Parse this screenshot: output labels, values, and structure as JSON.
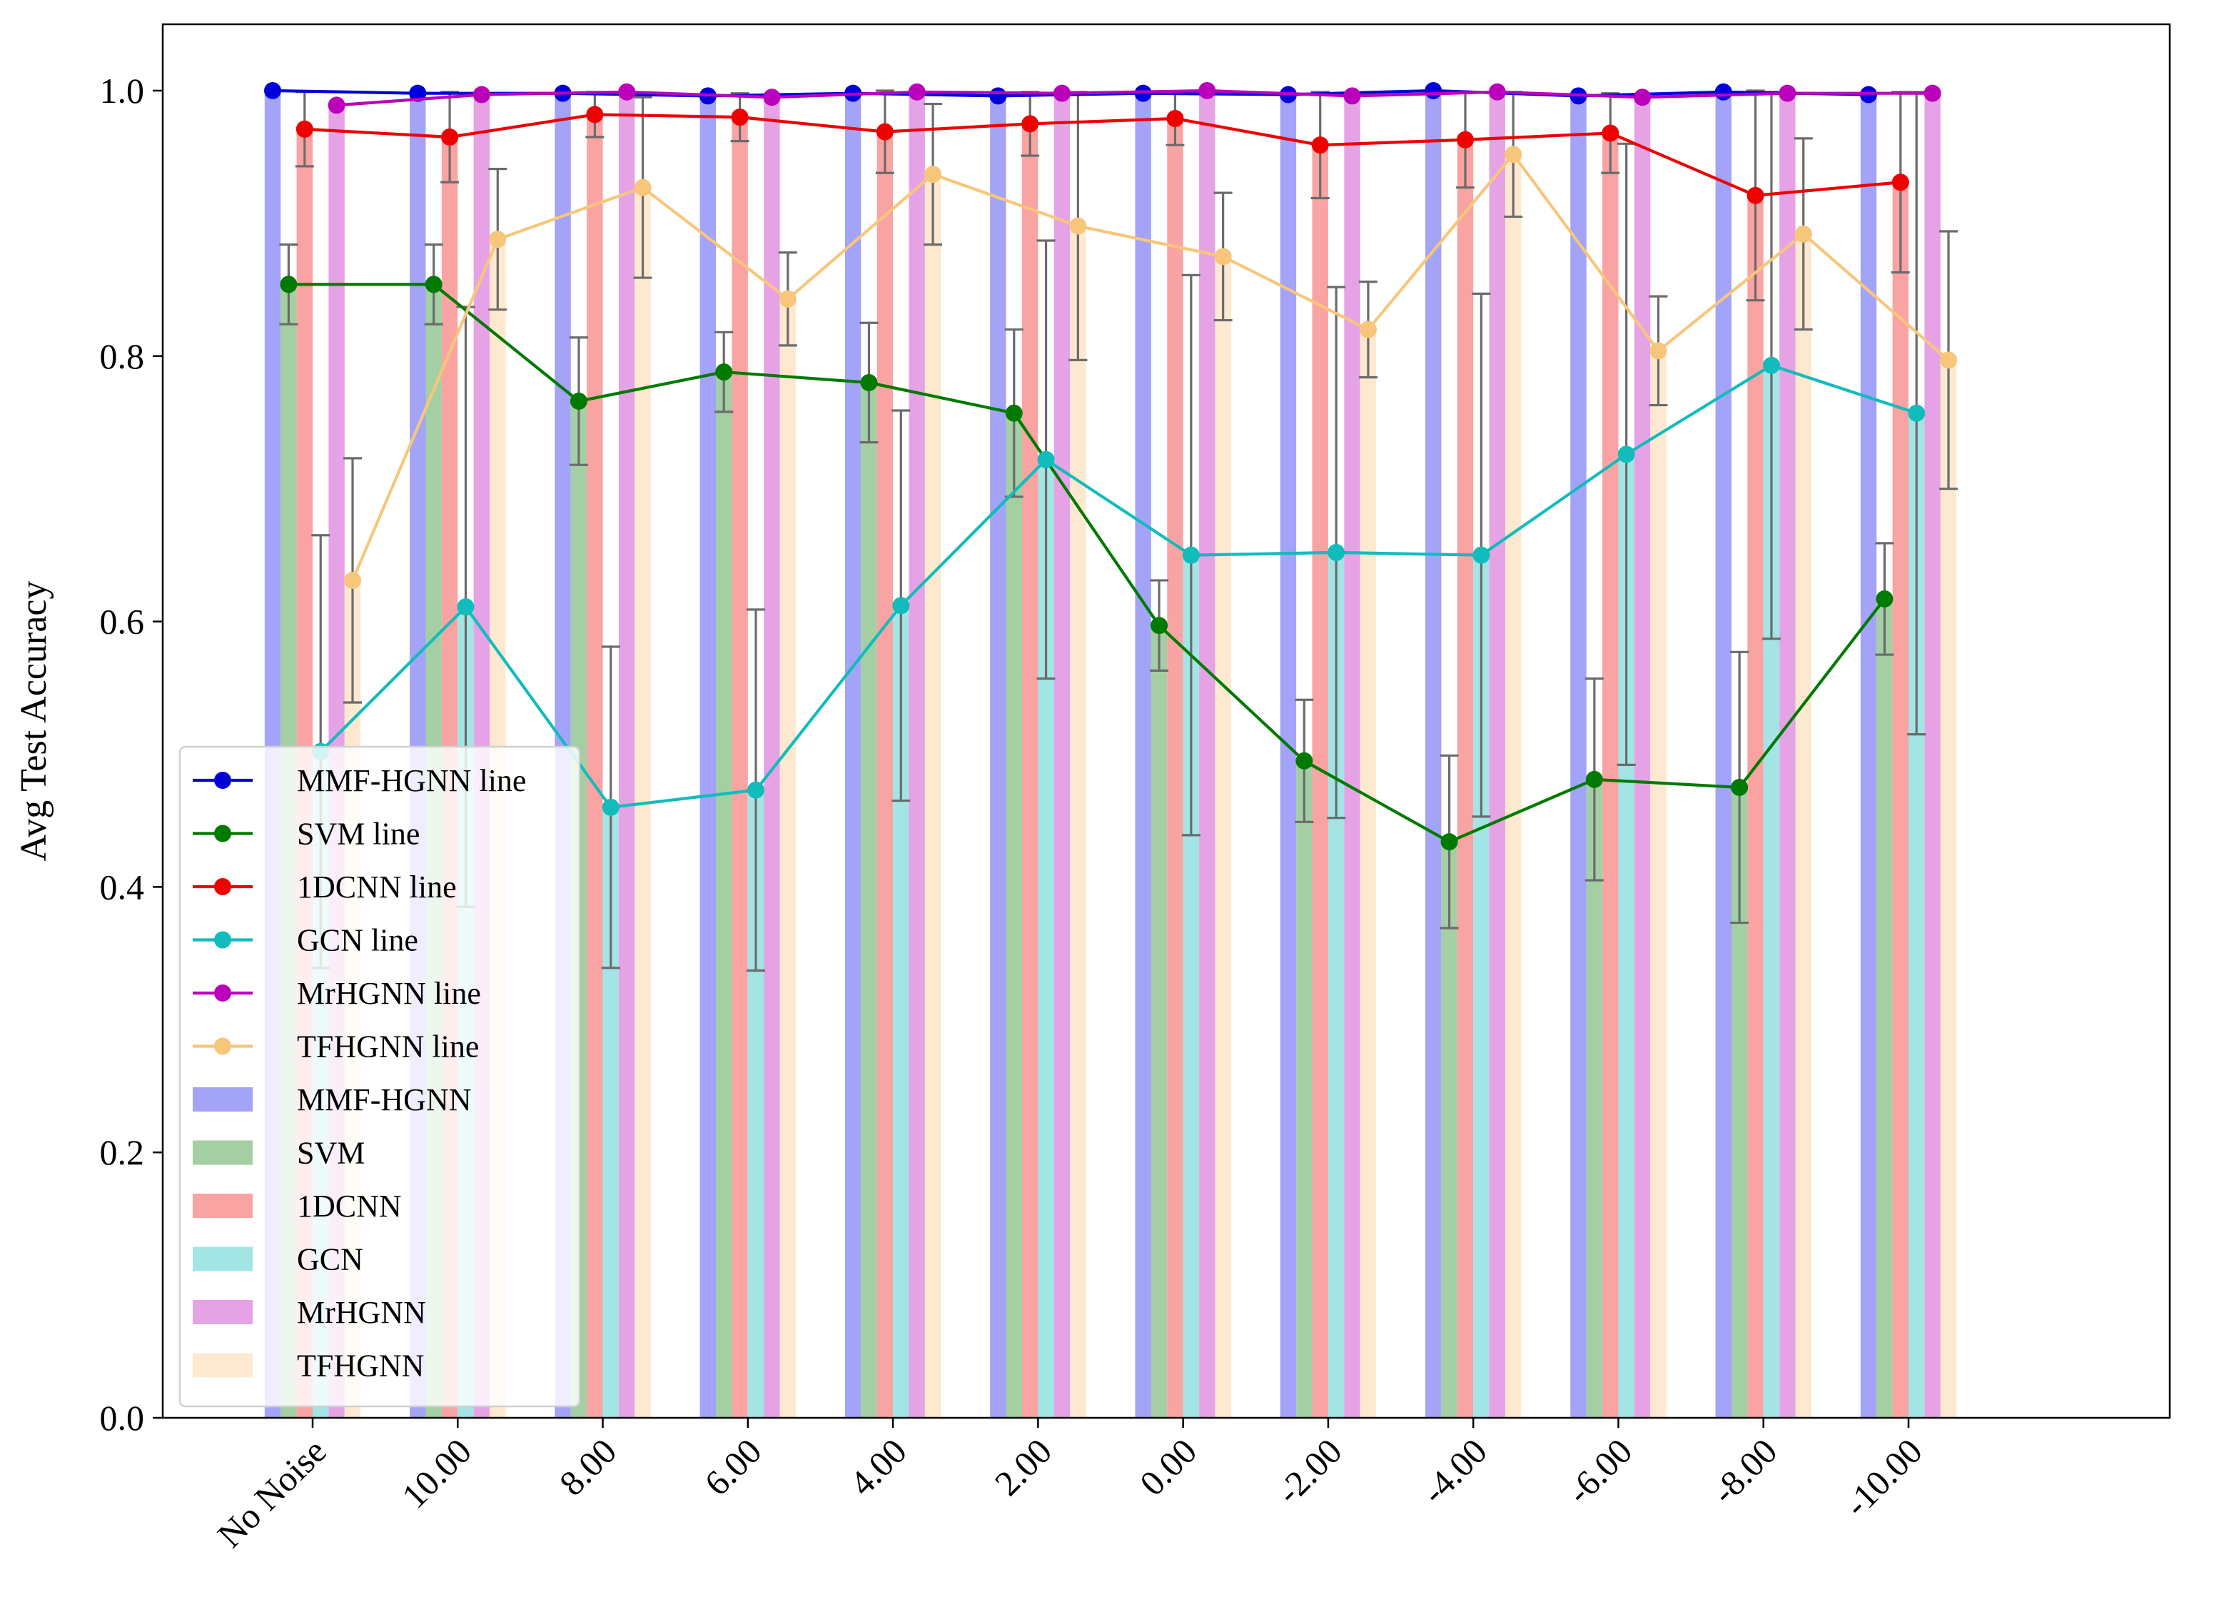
{
  "chart_data": {
    "type": "bar",
    "title": "",
    "xlabel": "",
    "ylabel": "Avg Test Accuracy",
    "ylim": [
      0,
      1.05
    ],
    "yticks": [
      "0.0",
      "0.2",
      "0.4",
      "0.6",
      "0.8",
      "1.0"
    ],
    "categories": [
      "No Noise",
      "10.00",
      "8.00",
      "6.00",
      "4.00",
      "2.00",
      "0.00",
      "-2.00",
      "-4.00",
      "-6.00",
      "-8.00",
      "-10.00"
    ],
    "legend_position": "lower-left",
    "series": [
      {
        "name": "MMF-HGNN",
        "line_label": "MMF-HGNN line",
        "bar_label": "MMF-HGNN",
        "line_color": "#0000dd",
        "bar_color": "#a3a3f8",
        "values": [
          1.0,
          0.998,
          0.998,
          0.996,
          0.998,
          0.996,
          0.998,
          0.997,
          1.0,
          0.996,
          0.999,
          0.997
        ],
        "errors": [
          0.0,
          0.0,
          0.0,
          0.0,
          0.0,
          0.0,
          0.0,
          0.0,
          0.0,
          0.0,
          0.0,
          0.0
        ]
      },
      {
        "name": "SVM",
        "line_label": "SVM line",
        "bar_label": "SVM",
        "line_color": "#007a00",
        "bar_color": "#a3cfa3",
        "values": [
          0.854,
          0.854,
          0.766,
          0.788,
          0.78,
          0.757,
          0.597,
          0.495,
          0.434,
          0.481,
          0.475,
          0.617
        ],
        "errors": [
          0.03,
          0.03,
          0.048,
          0.03,
          0.045,
          0.063,
          0.034,
          0.046,
          0.065,
          0.076,
          0.102,
          0.042
        ]
      },
      {
        "name": "1DCNN",
        "line_label": "1DCNN line",
        "bar_label": "1DCNN",
        "line_color": "#ee0000",
        "bar_color": "#faa3a3",
        "values": [
          0.971,
          0.965,
          0.982,
          0.98,
          0.969,
          0.975,
          0.979,
          0.959,
          0.963,
          0.968,
          0.921,
          0.931
        ],
        "errors": [
          0.028,
          0.034,
          0.017,
          0.018,
          0.031,
          0.024,
          0.02,
          0.04,
          0.036,
          0.03,
          0.079,
          0.068
        ]
      },
      {
        "name": "GCN",
        "line_label": "GCN line",
        "bar_label": "GCN",
        "line_color": "#12bcbc",
        "bar_color": "#a3e5e5",
        "values": [
          0.502,
          0.611,
          0.46,
          0.473,
          0.612,
          0.722,
          0.65,
          0.652,
          0.65,
          0.726,
          0.793,
          0.757
        ],
        "errors": [
          0.163,
          0.226,
          0.121,
          0.136,
          0.147,
          0.165,
          0.211,
          0.2,
          0.197,
          0.234,
          0.206,
          0.242
        ]
      },
      {
        "name": "MrHGNN",
        "line_label": "MrHGNN line",
        "bar_label": "MrHGNN",
        "line_color": "#bb00bb",
        "bar_color": "#e5a3e5",
        "values": [
          0.989,
          0.997,
          0.999,
          0.995,
          0.999,
          0.998,
          1.0,
          0.996,
          0.999,
          0.995,
          0.998,
          0.998
        ],
        "errors": [
          0.0,
          0.0,
          0.0,
          0.0,
          0.0,
          0.0,
          0.0,
          0.0,
          0.0,
          0.0,
          0.0,
          0.0
        ]
      },
      {
        "name": "TFHGNN",
        "line_label": "TFHGNN line",
        "bar_label": "TFHGNN",
        "line_color": "#f8c67a",
        "bar_color": "#fde9cf",
        "values": [
          0.631,
          0.888,
          0.927,
          0.843,
          0.937,
          0.898,
          0.875,
          0.82,
          0.952,
          0.804,
          0.892,
          0.797
        ],
        "errors": [
          0.092,
          0.053,
          0.068,
          0.035,
          0.053,
          0.101,
          0.048,
          0.036,
          0.047,
          0.041,
          0.072,
          0.097
        ]
      }
    ]
  }
}
